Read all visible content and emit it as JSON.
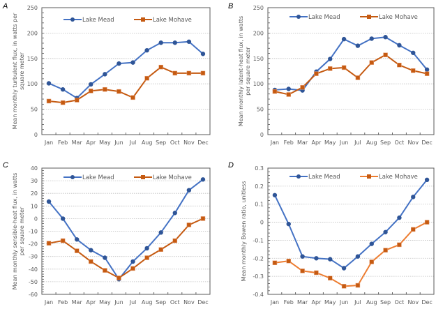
{
  "figure": {
    "months": [
      "Jan",
      "Feb",
      "Mar",
      "Apr",
      "May",
      "Jun",
      "Jul",
      "Aug",
      "Sep",
      "Oct",
      "Nov",
      "Dec"
    ],
    "series_colors": {
      "Lake Mead": {
        "line": "#4472C4",
        "marker": "#2F5597"
      },
      "Lake Mohave": {
        "line": "#C55A11",
        "marker": "#C55A11"
      }
    }
  },
  "chart_data": [
    {
      "panel": "A",
      "type": "line",
      "title": "",
      "xlabel": "",
      "ylabel": [
        "Mean monthly turbulent flux, in watts per",
        "square meter"
      ],
      "categories": [
        "Jan",
        "Feb",
        "Mar",
        "Apr",
        "May",
        "Jun",
        "Jul",
        "Aug",
        "Sep",
        "Oct",
        "Nov",
        "Dec"
      ],
      "ylim": [
        0,
        250
      ],
      "yticks": [
        0,
        50,
        100,
        150,
        200,
        250
      ],
      "ytick_labels": [
        "0",
        "50",
        "100",
        "150",
        "200",
        "250"
      ],
      "minor_step": 10,
      "grid": true,
      "legend": "top",
      "series": [
        {
          "name": "Lake Mead",
          "marker": "circle",
          "values": [
            101,
            89,
            72,
            99,
            119,
            140,
            142,
            166,
            181,
            181,
            183,
            159
          ]
        },
        {
          "name": "Lake Mohave",
          "marker": "square",
          "values": [
            66,
            63,
            68,
            86,
            89,
            85,
            73,
            111,
            133,
            121,
            121,
            121
          ]
        }
      ]
    },
    {
      "panel": "B",
      "type": "line",
      "title": "",
      "xlabel": "",
      "ylabel": [
        "Mean monthly latent-heat flux, in watts",
        "per square meter"
      ],
      "categories": [
        "Jan",
        "Feb",
        "Mar",
        "Apr",
        "May",
        "Jun",
        "Jul",
        "Aug",
        "Sep",
        "Oct",
        "Nov",
        "Dec"
      ],
      "ylim": [
        0,
        250
      ],
      "yticks": [
        0,
        50,
        100,
        150,
        200,
        250
      ],
      "ytick_labels": [
        "0",
        "50",
        "100",
        "150",
        "200",
        "250"
      ],
      "minor_step": 10,
      "grid": true,
      "legend": "top",
      "series": [
        {
          "name": "Lake Mead",
          "marker": "circle",
          "values": [
            88,
            90,
            87,
            124,
            149,
            188,
            175,
            189,
            192,
            176,
            161,
            128
          ]
        },
        {
          "name": "Lake Mohave",
          "marker": "square",
          "values": [
            85,
            79,
            93,
            120,
            130,
            132,
            112,
            142,
            157,
            137,
            126,
            120
          ]
        }
      ]
    },
    {
      "panel": "C",
      "type": "line",
      "title": "",
      "xlabel": "",
      "ylabel": [
        "Mean monthly sensible-heat flux, in watts",
        "per square meter"
      ],
      "categories": [
        "Jan",
        "Feb",
        "Mar",
        "Apr",
        "May",
        "Jun",
        "Jul",
        "Aug",
        "Sep",
        "Oct",
        "Nov",
        "Dec"
      ],
      "ylim": [
        -60,
        40
      ],
      "yticks": [
        -60,
        -50,
        -40,
        -30,
        -20,
        -10,
        0,
        10,
        20,
        30,
        40
      ],
      "ytick_labels": [
        "-60",
        "-50",
        "-40",
        "-30",
        "-20",
        "-10",
        "0",
        "10",
        "20",
        "30",
        "40"
      ],
      "minor_step": 2,
      "grid": true,
      "legend": "top",
      "series": [
        {
          "name": "Lake Mead",
          "marker": "circle",
          "values": [
            13.5,
            0,
            -16.5,
            -25,
            -31,
            -48,
            -34,
            -23.5,
            -11,
            4.5,
            22.5,
            31
          ]
        },
        {
          "name": "Lake Mohave",
          "marker": "square",
          "values": [
            -19.5,
            -17.5,
            -25.5,
            -34,
            -41,
            -47,
            -39.5,
            -31,
            -24.5,
            -17.5,
            -5,
            0
          ]
        }
      ]
    },
    {
      "panel": "D",
      "type": "line",
      "title": "",
      "xlabel": "",
      "ylabel": [
        "Mean monthly Bowen ratio, unitless"
      ],
      "categories": [
        "Jan",
        "Feb",
        "Mar",
        "Apr",
        "May",
        "Jun",
        "Jul",
        "Aug",
        "Sep",
        "Oct",
        "Nov",
        "Dec"
      ],
      "ylim": [
        -0.4,
        0.3
      ],
      "yticks": [
        -0.4,
        -0.3,
        -0.2,
        -0.1,
        0,
        0.1,
        0.2,
        0.3
      ],
      "ytick_labels": [
        "-0.4",
        "-0.3",
        "-0.2",
        "-0.1",
        "0",
        "0.1",
        "0.2",
        "0.3"
      ],
      "minor_step": 0.02,
      "grid": true,
      "legend": "top",
      "series": [
        {
          "name": "Lake Mead",
          "marker": "circle",
          "values": [
            0.15,
            -0.01,
            -0.19,
            -0.2,
            -0.205,
            -0.255,
            -0.19,
            -0.12,
            -0.055,
            0.025,
            0.14,
            0.235
          ]
        },
        {
          "name": "Lake Mohave",
          "marker": "square",
          "line_color": "#ED7D31",
          "values": [
            -0.225,
            -0.215,
            -0.27,
            -0.28,
            -0.31,
            -0.355,
            -0.35,
            -0.22,
            -0.155,
            -0.125,
            -0.04,
            0.0
          ]
        }
      ]
    }
  ]
}
